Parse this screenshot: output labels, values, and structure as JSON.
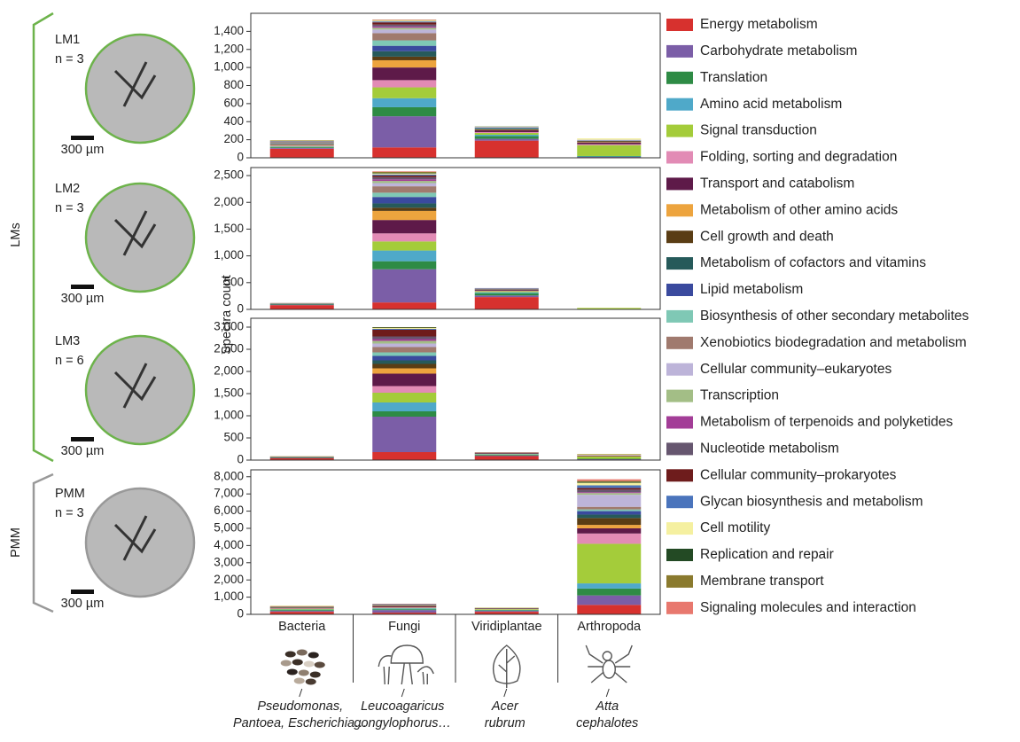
{
  "chart_data": [
    {
      "type": "bar",
      "stacked": true,
      "ylim": [
        0,
        1600
      ],
      "yticks": [
        0,
        200,
        400,
        600,
        800,
        {
          "value": 1000,
          "label": "1,000"
        },
        {
          "value": 1200,
          "label": "1,200"
        },
        {
          "value": 1400,
          "label": "1,400"
        }
      ],
      "series": [
        {
          "name": "Energy metabolism",
          "color": "#d7312e",
          "values": [
            100,
            115,
            190,
            5
          ]
        },
        {
          "name": "Carbohydrate metabolism",
          "color": "#7b5ea7",
          "values": [
            10,
            345,
            20,
            5
          ]
        },
        {
          "name": "Translation",
          "color": "#2e8b45",
          "values": [
            10,
            100,
            30,
            5
          ]
        },
        {
          "name": "Amino acid metabolism",
          "color": "#4fa9c9",
          "values": [
            5,
            100,
            15,
            5
          ]
        },
        {
          "name": "Signal transduction",
          "color": "#a4cc3a",
          "values": [
            5,
            120,
            20,
            120
          ]
        },
        {
          "name": "Folding, sorting and degradation",
          "color": "#e28bb5",
          "values": [
            5,
            80,
            10,
            10
          ]
        },
        {
          "name": "Transport and catabolism",
          "color": "#5e1a49",
          "values": [
            5,
            140,
            20,
            20
          ]
        },
        {
          "name": "Metabolism of other amino acids",
          "color": "#eda43e",
          "values": [
            5,
            80,
            5,
            5
          ]
        },
        {
          "name": "Cell growth and death",
          "color": "#5a3d14",
          "values": [
            5,
            40,
            5,
            10
          ]
        },
        {
          "name": "Metabolism of cofactors and vitamins",
          "color": "#265a5a",
          "values": [
            5,
            60,
            10,
            5
          ]
        },
        {
          "name": "Lipid metabolism",
          "color": "#3a4a9e",
          "values": [
            5,
            60,
            5,
            0
          ]
        },
        {
          "name": "Biosynthesis of other secondary metabolites",
          "color": "#7fc8b5",
          "values": [
            0,
            60,
            5,
            0
          ]
        },
        {
          "name": "Xenobiotics biodegradation and metabolism",
          "color": "#a07a6e",
          "values": [
            5,
            80,
            5,
            0
          ]
        },
        {
          "name": "Cellular community–eukaryotes",
          "color": "#bdb4d9",
          "values": [
            0,
            40,
            5,
            10
          ]
        },
        {
          "name": "Transcription",
          "color": "#a3be86",
          "values": [
            5,
            20,
            5,
            0
          ]
        },
        {
          "name": "Metabolism of terpenoids and polyketides",
          "color": "#a33d97",
          "values": [
            0,
            15,
            0,
            0
          ]
        },
        {
          "name": "Nucleotide metabolism",
          "color": "#66566f",
          "values": [
            5,
            20,
            0,
            0
          ]
        },
        {
          "name": "Cellular community–prokaryotes",
          "color": "#6e1c1c",
          "values": [
            5,
            25,
            0,
            0
          ]
        },
        {
          "name": "Glycan biosynthesis and metabolism",
          "color": "#4a74bc",
          "values": [
            5,
            10,
            0,
            0
          ]
        },
        {
          "name": "Cell motility",
          "color": "#f5f0a0",
          "values": [
            5,
            10,
            0,
            15
          ]
        },
        {
          "name": "Replication and repair",
          "color": "#234a24",
          "values": [
            0,
            0,
            0,
            0
          ]
        },
        {
          "name": "Membrane transport",
          "color": "#8a7a2e",
          "values": [
            5,
            5,
            0,
            0
          ]
        },
        {
          "name": "Signaling molecules and interaction",
          "color": "#e8786e",
          "values": [
            0,
            5,
            0,
            0
          ]
        }
      ]
    },
    {
      "type": "bar",
      "stacked": true,
      "ylim": [
        0,
        2650
      ],
      "yticks": [
        0,
        500,
        {
          "value": 1000,
          "label": "1,000"
        },
        {
          "value": 1500,
          "label": "1,500"
        },
        {
          "value": 2000,
          "label": "2,000"
        },
        {
          "value": 2500,
          "label": "2,500"
        }
      ],
      "series": [
        {
          "values": [
            80,
            130,
            230,
            5
          ]
        },
        {
          "values": [
            10,
            620,
            30,
            0
          ]
        },
        {
          "values": [
            10,
            150,
            40,
            0
          ]
        },
        {
          "values": [
            5,
            200,
            20,
            0
          ]
        },
        {
          "values": [
            5,
            170,
            20,
            20
          ]
        },
        {
          "values": [
            0,
            150,
            10,
            0
          ]
        },
        {
          "values": [
            5,
            250,
            20,
            0
          ]
        },
        {
          "values": [
            0,
            170,
            5,
            0
          ]
        },
        {
          "values": [
            0,
            60,
            0,
            0
          ]
        },
        {
          "values": [
            0,
            80,
            10,
            0
          ]
        },
        {
          "values": [
            0,
            120,
            5,
            0
          ]
        },
        {
          "values": [
            0,
            80,
            0,
            0
          ]
        },
        {
          "values": [
            5,
            120,
            5,
            0
          ]
        },
        {
          "values": [
            0,
            60,
            5,
            0
          ]
        },
        {
          "values": [
            0,
            40,
            0,
            0
          ]
        },
        {
          "values": [
            0,
            30,
            0,
            0
          ]
        },
        {
          "values": [
            0,
            40,
            0,
            0
          ]
        },
        {
          "values": [
            0,
            30,
            0,
            0
          ]
        },
        {
          "values": [
            0,
            20,
            0,
            0
          ]
        },
        {
          "values": [
            0,
            20,
            0,
            5
          ]
        },
        {
          "values": [
            0,
            10,
            0,
            0
          ]
        },
        {
          "values": [
            0,
            20,
            0,
            0
          ]
        },
        {
          "values": [
            0,
            10,
            0,
            0
          ]
        }
      ]
    },
    {
      "type": "bar",
      "stacked": true,
      "ylim": [
        0,
        3200
      ],
      "yticks": [
        0,
        500,
        {
          "value": 1000,
          "label": "1,000"
        },
        {
          "value": 1500,
          "label": "1,500"
        },
        {
          "value": 2000,
          "label": "2,000"
        },
        {
          "value": 2500,
          "label": "2,500"
        },
        {
          "value": 3000,
          "label": "3,000"
        }
      ],
      "series": [
        {
          "values": [
            40,
            180,
            90,
            10
          ]
        },
        {
          "values": [
            10,
            800,
            15,
            10
          ]
        },
        {
          "values": [
            10,
            120,
            20,
            10
          ]
        },
        {
          "values": [
            5,
            200,
            10,
            0
          ]
        },
        {
          "values": [
            5,
            220,
            10,
            50
          ]
        },
        {
          "values": [
            0,
            150,
            0,
            0
          ]
        },
        {
          "values": [
            5,
            280,
            15,
            15
          ]
        },
        {
          "values": [
            0,
            120,
            5,
            5
          ]
        },
        {
          "values": [
            0,
            100,
            0,
            5
          ]
        },
        {
          "values": [
            0,
            80,
            0,
            0
          ]
        },
        {
          "values": [
            0,
            100,
            0,
            0
          ]
        },
        {
          "values": [
            0,
            80,
            0,
            0
          ]
        },
        {
          "values": [
            0,
            120,
            5,
            0
          ]
        },
        {
          "values": [
            0,
            80,
            5,
            10
          ]
        },
        {
          "values": [
            0,
            60,
            0,
            0
          ]
        },
        {
          "values": [
            0,
            40,
            0,
            0
          ]
        },
        {
          "values": [
            0,
            60,
            0,
            0
          ]
        },
        {
          "values": [
            5,
            150,
            5,
            0
          ]
        },
        {
          "values": [
            0,
            20,
            0,
            0
          ]
        },
        {
          "values": [
            0,
            20,
            0,
            15
          ]
        },
        {
          "values": [
            0,
            10,
            0,
            0
          ]
        },
        {
          "values": [
            5,
            10,
            0,
            10
          ]
        },
        {
          "values": [
            0,
            0,
            0,
            0
          ]
        }
      ]
    },
    {
      "type": "bar",
      "stacked": true,
      "ylim": [
        0,
        8400
      ],
      "categories": [
        "Bacteria",
        "Fungi",
        "Viridiplantae",
        "Arthropoda"
      ],
      "yticks": [
        0,
        {
          "value": 1000,
          "label": "1,000"
        },
        {
          "value": 2000,
          "label": "2,000"
        },
        {
          "value": 3000,
          "label": "3,000"
        },
        {
          "value": 4000,
          "label": "4,000"
        },
        {
          "value": 5000,
          "label": "5,000"
        },
        {
          "value": 6000,
          "label": "6,000"
        },
        {
          "value": 7000,
          "label": "7,000"
        },
        {
          "value": 8000,
          "label": "8,000"
        }
      ],
      "series": [
        {
          "values": [
            150,
            100,
            150,
            550
          ]
        },
        {
          "values": [
            50,
            150,
            50,
            550
          ]
        },
        {
          "values": [
            50,
            50,
            40,
            400
          ]
        },
        {
          "values": [
            30,
            50,
            20,
            300
          ]
        },
        {
          "values": [
            30,
            30,
            40,
            2300
          ]
        },
        {
          "values": [
            20,
            30,
            10,
            600
          ]
        },
        {
          "values": [
            20,
            60,
            30,
            300
          ]
        },
        {
          "values": [
            20,
            30,
            10,
            200
          ]
        },
        {
          "values": [
            20,
            20,
            0,
            400
          ]
        },
        {
          "values": [
            20,
            20,
            10,
            200
          ]
        },
        {
          "values": [
            10,
            20,
            0,
            200
          ]
        },
        {
          "values": [
            0,
            0,
            0,
            100
          ]
        },
        {
          "values": [
            20,
            20,
            10,
            150
          ]
        },
        {
          "values": [
            0,
            0,
            0,
            700
          ]
        },
        {
          "values": [
            0,
            0,
            0,
            100
          ]
        },
        {
          "values": [
            0,
            0,
            0,
            50
          ]
        },
        {
          "values": [
            0,
            0,
            0,
            150
          ]
        },
        {
          "values": [
            20,
            20,
            0,
            100
          ]
        },
        {
          "values": [
            0,
            0,
            0,
            150
          ]
        },
        {
          "values": [
            30,
            0,
            20,
            150
          ]
        },
        {
          "values": [
            0,
            0,
            0,
            50
          ]
        },
        {
          "values": [
            10,
            0,
            10,
            50
          ]
        },
        {
          "values": [
            0,
            0,
            0,
            100
          ]
        }
      ]
    }
  ],
  "ylabel": "Spectra count",
  "groups": [
    "LMs",
    "PMM"
  ],
  "samples": [
    {
      "name": "LM1",
      "count": "n = 3",
      "scale": "300 µm"
    },
    {
      "name": "LM2",
      "count": "n = 3",
      "scale": "300 µm"
    },
    {
      "name": "LM3",
      "count": "n = 6",
      "scale": "300 µm"
    },
    {
      "name": "PMM",
      "count": "n = 3",
      "scale": "300 µm"
    }
  ],
  "species": [
    [
      "Pseudomonas,",
      "Pantoea, Escherichia…"
    ],
    [
      "Leucoagaricus",
      "gongylophorus…"
    ],
    [
      "Acer",
      "rubrum"
    ],
    [
      "Atta",
      "cephalotes"
    ]
  ]
}
